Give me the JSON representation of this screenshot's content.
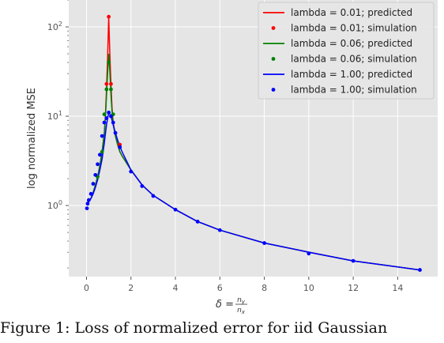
{
  "chart_data": {
    "type": "line",
    "title": "",
    "xlabel_main": "δ =",
    "xlabel_num": "n",
    "xlabel_num_sub": "y",
    "xlabel_den": "n",
    "xlabel_den_sub": "x",
    "ylabel": "log normalized MSE",
    "xlim": [
      -0.8,
      15.8
    ],
    "xticks": [
      0,
      2,
      4,
      6,
      8,
      10,
      12,
      14
    ],
    "yscale": "log",
    "ylim": [
      0.16,
      200
    ],
    "yticks": [
      {
        "value": 1,
        "base": "10",
        "exp": "0"
      },
      {
        "value": 10,
        "base": "10",
        "exp": "1"
      },
      {
        "value": 100,
        "base": "10",
        "exp": "2"
      }
    ],
    "grid": true,
    "legend_position": "top-right",
    "series": [
      {
        "name": "lambda = 0.01; predicted",
        "kind": "line",
        "color": "#ff0000",
        "x": [
          0.05,
          0.1,
          0.2,
          0.3,
          0.4,
          0.5,
          0.6,
          0.7,
          0.8,
          0.85,
          0.9,
          0.95,
          1.0,
          1.05,
          1.1,
          1.15,
          1.2,
          1.3,
          1.4,
          1.5,
          1.6,
          2,
          2.5,
          3,
          4,
          5,
          6,
          8,
          10,
          12,
          15
        ],
        "y": [
          1.05,
          1.1,
          1.2,
          1.4,
          1.7,
          2.1,
          2.8,
          4.0,
          6.5,
          10,
          20,
          45,
          130,
          50,
          22,
          12,
          8.5,
          6.0,
          4.8,
          4.0,
          3.6,
          2.5,
          1.7,
          1.3,
          0.9,
          0.66,
          0.53,
          0.38,
          0.3,
          0.24,
          0.19
        ]
      },
      {
        "name": "lambda = 0.01; simulation",
        "kind": "scatter",
        "color": "#ff0000",
        "x": [
          0.9,
          1.0,
          1.1,
          1.5
        ],
        "y": [
          23,
          130,
          23,
          4.8
        ]
      },
      {
        "name": "lambda = 0.06; predicted",
        "kind": "line",
        "color": "#008000",
        "x": [
          0.05,
          0.1,
          0.2,
          0.3,
          0.4,
          0.5,
          0.6,
          0.7,
          0.8,
          0.85,
          0.9,
          0.95,
          1.0,
          1.05,
          1.1,
          1.15,
          1.2,
          1.3,
          1.4,
          1.5,
          1.6,
          2,
          2.5,
          3,
          4,
          5,
          6,
          8,
          10,
          12,
          15
        ],
        "y": [
          1.05,
          1.1,
          1.2,
          1.4,
          1.7,
          2.1,
          2.8,
          4.0,
          6.3,
          9.5,
          17,
          30,
          50,
          32,
          17,
          11,
          8,
          6,
          4.8,
          4,
          3.6,
          2.5,
          1.7,
          1.3,
          0.9,
          0.66,
          0.53,
          0.38,
          0.3,
          0.24,
          0.19
        ]
      },
      {
        "name": "lambda = 0.06; simulation",
        "kind": "scatter",
        "color": "#008000",
        "x": [
          0.5,
          0.7,
          0.8,
          0.9,
          1.0,
          1.1,
          1.2,
          1.5
        ],
        "y": [
          2.1,
          4.0,
          10.5,
          20,
          40,
          20,
          10.5,
          4.5
        ]
      },
      {
        "name": "lambda = 1.00; predicted",
        "kind": "line",
        "color": "#0000ff",
        "x": [
          0.05,
          0.1,
          0.2,
          0.3,
          0.4,
          0.5,
          0.6,
          0.7,
          0.8,
          0.9,
          1.0,
          1.1,
          1.2,
          1.3,
          1.4,
          1.5,
          1.6,
          2,
          2.5,
          3,
          4,
          5,
          6,
          8,
          10,
          12,
          15
        ],
        "y": [
          1.0,
          1.1,
          1.2,
          1.35,
          1.6,
          1.95,
          2.5,
          3.3,
          5.0,
          8.0,
          11.0,
          10.0,
          8.0,
          6.5,
          5.4,
          4.6,
          4.0,
          2.5,
          1.7,
          1.3,
          0.9,
          0.66,
          0.53,
          0.38,
          0.3,
          0.24,
          0.19
        ]
      },
      {
        "name": "lambda = 1.00; simulation",
        "kind": "scatter",
        "color": "#0000ff",
        "x": [
          0.02,
          0.05,
          0.1,
          0.2,
          0.3,
          0.4,
          0.5,
          0.6,
          0.7,
          0.8,
          0.9,
          1.0,
          1.1,
          1.2,
          1.3,
          1.5,
          2,
          2.5,
          3,
          4,
          5,
          6,
          8,
          10,
          12,
          15
        ],
        "y": [
          0.93,
          1.05,
          1.15,
          1.35,
          1.75,
          2.2,
          2.9,
          3.7,
          6.0,
          8.5,
          9.5,
          11.0,
          10.0,
          8.5,
          6.5,
          4.5,
          2.4,
          1.65,
          1.28,
          0.9,
          0.66,
          0.53,
          0.38,
          0.29,
          0.24,
          0.19
        ]
      }
    ]
  },
  "caption": "Figure 1: Loss of normalized error for iid Gaussian"
}
